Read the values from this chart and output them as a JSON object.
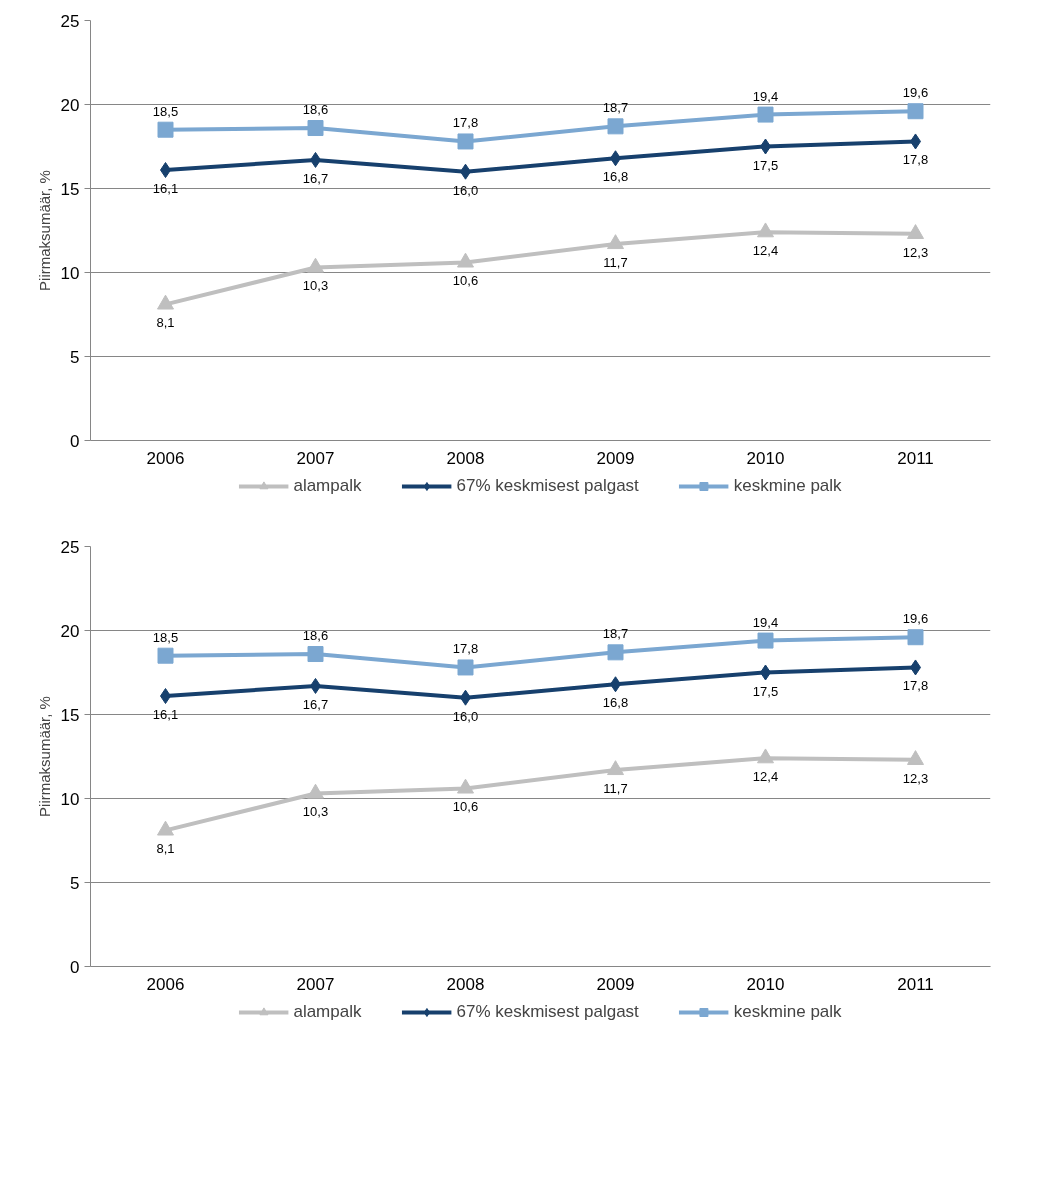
{
  "chart_data": [
    {
      "type": "line",
      "ylabel": "Piirmaksumäär, %",
      "categories": [
        "2006",
        "2007",
        "2008",
        "2009",
        "2010",
        "2011"
      ],
      "ylim": [
        0,
        25
      ],
      "yticks": [
        0,
        5,
        10,
        15,
        20,
        25
      ],
      "grid": "y",
      "legend": "bottom",
      "line_style": "solid",
      "series": [
        {
          "name": "alampalk",
          "color": "#bfbfbf",
          "marker": "triangle",
          "values": [
            8.1,
            10.3,
            10.6,
            11.7,
            12.4,
            12.3
          ],
          "value_labels": [
            "8,1",
            "10,3",
            "10,6",
            "11,7",
            "12,4",
            "12,3"
          ]
        },
        {
          "name": "67% keskmisest palgast",
          "color": "#17406d",
          "marker": "diamond",
          "values": [
            16.1,
            16.7,
            16.0,
            16.8,
            17.5,
            17.8
          ],
          "value_labels": [
            "16,1",
            "16,7",
            "16,0",
            "16,8",
            "17,5",
            "17,8"
          ]
        },
        {
          "name": "keskmine palk",
          "color": "#7ba7d1",
          "marker": "square",
          "values": [
            18.5,
            18.6,
            17.8,
            18.7,
            19.4,
            19.6
          ],
          "value_labels": [
            "18,5",
            "18,6",
            "17,8",
            "18,7",
            "19,4",
            "19,6"
          ]
        }
      ]
    },
    {
      "type": "line",
      "ylabel": "Piirmaksumäär, %",
      "categories": [
        "2006",
        "2007",
        "2008",
        "2009",
        "2010",
        "2011"
      ],
      "ylim": [
        0,
        25
      ],
      "yticks": [
        0,
        5,
        10,
        15,
        20,
        25
      ],
      "grid": "y",
      "legend": "bottom",
      "line_style": "solid",
      "series": [
        {
          "name": "alampalk",
          "color": "#bfbfbf",
          "marker": "triangle",
          "values": [
            8.1,
            10.3,
            10.6,
            11.7,
            12.4,
            12.3
          ],
          "value_labels": [
            "8,1",
            "10,3",
            "10,6",
            "11,7",
            "12,4",
            "12,3"
          ]
        },
        {
          "name": "67% keskmisest palgast",
          "color": "#17406d",
          "marker": "diamond",
          "values": [
            16.1,
            16.7,
            16.0,
            16.8,
            17.5,
            17.8
          ],
          "value_labels": [
            "16,1",
            "16,7",
            "16,0",
            "16,8",
            "17,5",
            "17,8"
          ]
        },
        {
          "name": "keskmine palk",
          "color": "#7ba7d1",
          "marker": "square",
          "values": [
            18.5,
            18.6,
            17.8,
            18.7,
            19.4,
            19.6
          ],
          "value_labels": [
            "18,5",
            "18,6",
            "17,8",
            "18,7",
            "19,4",
            "19,6"
          ]
        }
      ]
    }
  ]
}
